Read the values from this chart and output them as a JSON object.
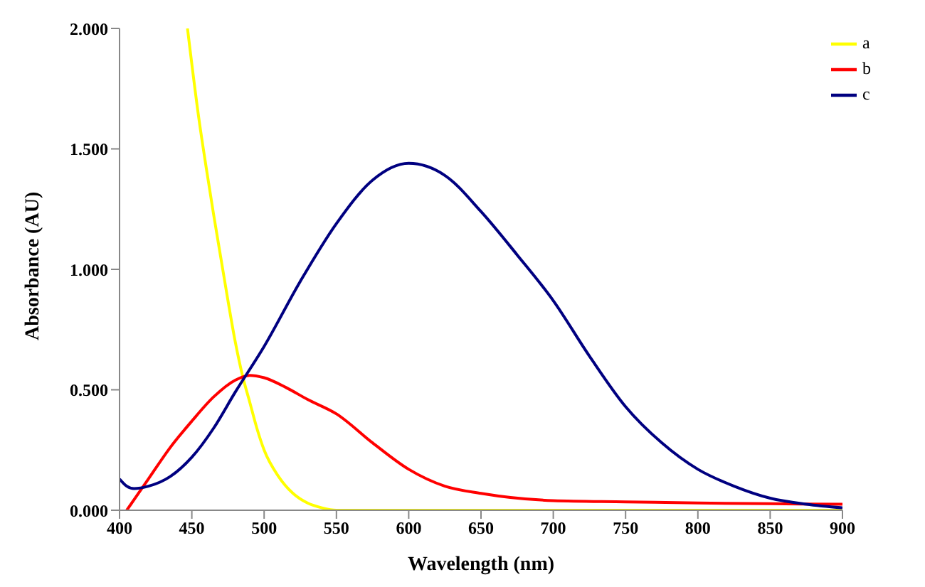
{
  "chart_data": {
    "type": "line",
    "xlabel": "Wavelength (nm)",
    "ylabel": "Absorbance (AU)",
    "xlim": [
      400,
      900
    ],
    "ylim": [
      0,
      2
    ],
    "xticks": [
      400,
      450,
      500,
      550,
      600,
      650,
      700,
      750,
      800,
      850,
      900
    ],
    "yticks": [
      {
        "value": 0,
        "label": "0.000"
      },
      {
        "value": 0.5,
        "label": "0.500"
      },
      {
        "value": 1,
        "label": "1.000"
      },
      {
        "value": 1.5,
        "label": "1.500"
      },
      {
        "value": 2,
        "label": "2.000"
      }
    ],
    "grid": false,
    "legend": "top right",
    "marker": "none",
    "line_style": "solid",
    "series": [
      {
        "name": "a",
        "color": "#ffff00",
        "x": [
          447,
          455,
          460,
          465,
          470,
          475,
          480,
          485,
          490,
          495,
          500,
          510,
          520,
          530,
          540,
          550,
          600,
          700,
          800,
          900
        ],
        "values": [
          2.0,
          1.62,
          1.42,
          1.23,
          1.05,
          0.87,
          0.7,
          0.56,
          0.45,
          0.34,
          0.25,
          0.14,
          0.07,
          0.03,
          0.01,
          0.0,
          0.0,
          0.0,
          0.0,
          0.0
        ]
      },
      {
        "name": "b",
        "color": "#ff0000",
        "x": [
          405,
          420,
          435,
          450,
          465,
          480,
          490,
          500,
          515,
          530,
          550,
          575,
          600,
          625,
          650,
          700,
          750,
          800,
          850,
          900
        ],
        "values": [
          0.0,
          0.13,
          0.26,
          0.37,
          0.47,
          0.54,
          0.56,
          0.55,
          0.51,
          0.46,
          0.4,
          0.28,
          0.17,
          0.1,
          0.07,
          0.04,
          0.035,
          0.03,
          0.027,
          0.025
        ]
      },
      {
        "name": "c",
        "color": "#000080",
        "x": [
          400,
          405,
          410,
          420,
          435,
          450,
          465,
          480,
          500,
          525,
          550,
          575,
          600,
          625,
          650,
          675,
          700,
          725,
          750,
          775,
          800,
          825,
          850,
          875,
          900
        ],
        "values": [
          0.13,
          0.1,
          0.09,
          0.1,
          0.14,
          0.22,
          0.34,
          0.49,
          0.68,
          0.95,
          1.19,
          1.37,
          1.44,
          1.39,
          1.24,
          1.06,
          0.87,
          0.64,
          0.43,
          0.28,
          0.17,
          0.1,
          0.05,
          0.025,
          0.01
        ]
      }
    ]
  }
}
